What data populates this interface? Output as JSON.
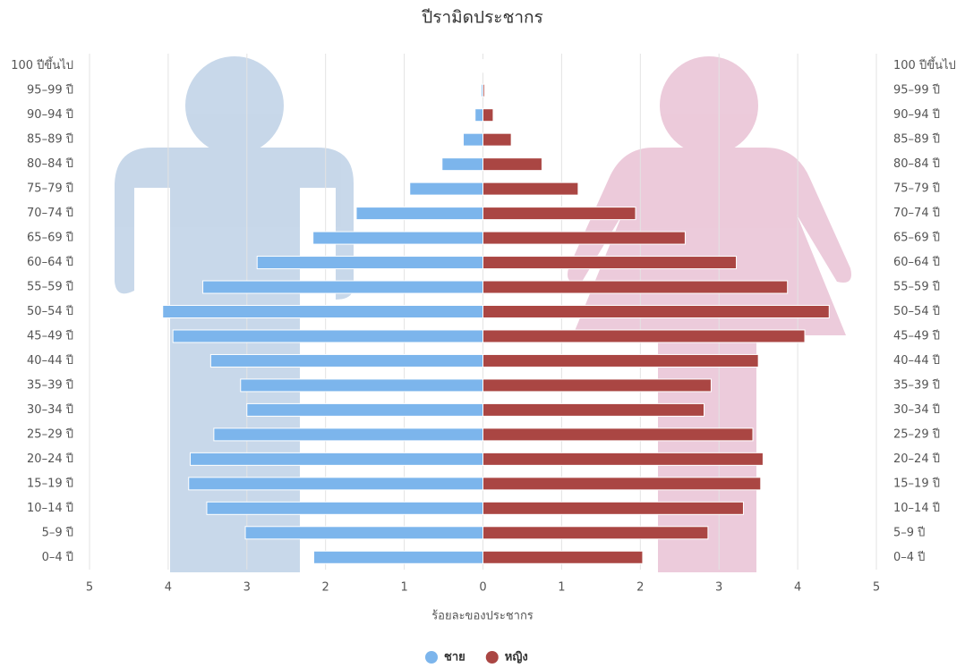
{
  "chart_data": {
    "type": "pyramid",
    "title": "ปีรามิดประชากร",
    "x_label": "ร้อยละของประชากร",
    "categories": [
      "100 ปีขึ้นไป",
      "95–99 ปี",
      "90–94 ปี",
      "85–89 ปี",
      "80–84 ปี",
      "75–79 ปี",
      "70–74 ปี",
      "65–69 ปี",
      "60–64 ปี",
      "55–59 ปี",
      "50–54 ปี",
      "45–49 ปี",
      "40–44 ปี",
      "35–39 ปี",
      "30–34 ปี",
      "25–29 ปี",
      "20–24 ปี",
      "15–19 ปี",
      "10–14 ปี",
      "5–9 ปี",
      "0–4 ปี"
    ],
    "series": [
      {
        "name": "ชาย",
        "color": "#7cb5ec",
        "side": "left",
        "values": [
          0.01,
          0.02,
          0.1,
          0.25,
          0.52,
          0.93,
          1.61,
          2.16,
          2.87,
          3.56,
          4.07,
          3.94,
          3.46,
          3.08,
          3.0,
          3.42,
          3.72,
          3.74,
          3.51,
          3.02,
          2.15
        ]
      },
      {
        "name": "หญิง",
        "color": "#aa4643",
        "side": "right",
        "values": [
          0.01,
          0.02,
          0.13,
          0.36,
          0.75,
          1.21,
          1.94,
          2.57,
          3.22,
          3.87,
          4.4,
          4.09,
          3.5,
          2.9,
          2.81,
          3.43,
          3.56,
          3.53,
          3.31,
          2.86,
          2.03
        ]
      }
    ],
    "xlim": [
      -5,
      5
    ],
    "xticks": [
      {
        "value": -5,
        "label": "5"
      },
      {
        "value": -4,
        "label": "4"
      },
      {
        "value": -3,
        "label": "3"
      },
      {
        "value": -2,
        "label": "2"
      },
      {
        "value": -1,
        "label": "1"
      },
      0,
      1,
      2,
      3,
      4,
      5
    ],
    "grid": true,
    "legend": "bottom"
  }
}
